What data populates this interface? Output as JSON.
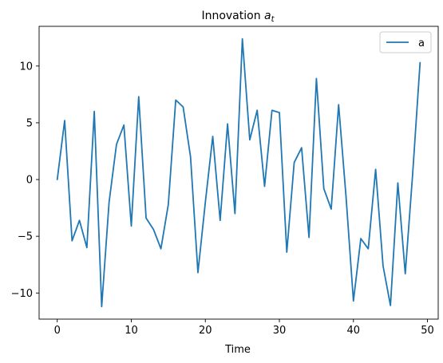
{
  "chart_data": {
    "type": "line",
    "title": "Innovation",
    "title_symbol": "a",
    "title_subscript": "t",
    "xlabel": "Time",
    "ylabel": "",
    "xlim": [
      -2.45,
      51.45
    ],
    "ylim": [
      -12.3,
      13.5
    ],
    "xticks": [
      0,
      10,
      20,
      30,
      40,
      50
    ],
    "yticks": [
      -10,
      -5,
      0,
      5,
      10
    ],
    "ytick_labels": [
      "−10",
      "−5",
      "0",
      "5",
      "10"
    ],
    "grid": false,
    "legend_position": "top-right",
    "series": [
      {
        "name": "a",
        "color": "#1f77b4",
        "x": [
          0,
          1,
          2,
          3,
          4,
          5,
          6,
          7,
          8,
          9,
          10,
          11,
          12,
          13,
          14,
          15,
          16,
          17,
          18,
          19,
          20,
          21,
          22,
          23,
          24,
          25,
          26,
          27,
          28,
          29,
          30,
          31,
          32,
          33,
          34,
          35,
          36,
          37,
          38,
          39,
          40,
          41,
          42,
          43,
          44,
          45,
          46,
          47,
          48,
          49
        ],
        "values": [
          0,
          5.2,
          -5.4,
          -3.6,
          -6.0,
          6.0,
          -11.2,
          -2.0,
          3.1,
          4.8,
          -4.1,
          7.3,
          -3.4,
          -4.4,
          -6.1,
          -2.2,
          7.0,
          6.4,
          2.0,
          -8.2,
          -2.0,
          3.8,
          -3.6,
          4.9,
          -3.0,
          12.4,
          3.5,
          6.1,
          -0.6,
          6.1,
          5.9,
          -6.4,
          1.5,
          2.8,
          -5.1,
          8.9,
          -0.8,
          -2.6,
          6.6,
          -1.5,
          -10.7,
          -5.2,
          -6.1,
          0.9,
          -7.6,
          -11.1,
          -0.3,
          -8.3,
          0.5,
          10.3
        ]
      }
    ]
  }
}
